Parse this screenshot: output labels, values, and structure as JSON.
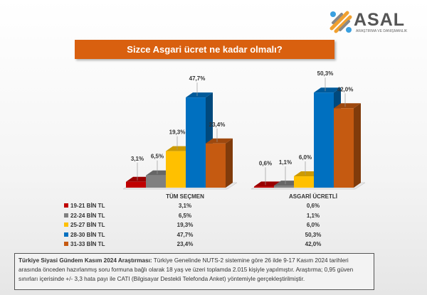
{
  "logo": {
    "name": "ASAL",
    "subtitle": "ARAŞTIRMA VE DANIŞMANLIK"
  },
  "title": "Sizce Asgari ücret ne kadar olmalı?",
  "chart_data": {
    "type": "bar",
    "title": "Sizce Asgari ücret ne kadar olmalı?",
    "categories": [
      "TÜM SEÇMEN",
      "ASGARİ ÜCRETLİ"
    ],
    "series": [
      {
        "name": "19-21 BİN TL",
        "color": "#c00000",
        "values": [
          3.1,
          0.6
        ],
        "labels": [
          "3,1%",
          "0,6%"
        ]
      },
      {
        "name": "22-24 BİN TL",
        "color": "#808080",
        "values": [
          6.5,
          1.1
        ],
        "labels": [
          "6,5%",
          "1,1%"
        ]
      },
      {
        "name": "25-27 BİN TL",
        "color": "#ffc000",
        "values": [
          19.3,
          6.0
        ],
        "labels": [
          "19,3%",
          "6,0%"
        ]
      },
      {
        "name": "28-30 BİN TL",
        "color": "#0070c0",
        "values": [
          47.7,
          50.3
        ],
        "labels": [
          "47,7%",
          "50,3%"
        ]
      },
      {
        "name": "31-33 BİN TL",
        "color": "#c55a11",
        "values": [
          23.4,
          42.0
        ],
        "labels": [
          "23,4%",
          "42,0%"
        ]
      }
    ],
    "style": "3d-clustered-column",
    "legend": "data-table-below"
  },
  "footer": {
    "bold": "Türkiye Siyasi Gündem Kasım 2024 Araştırması:",
    "text": " Türkiye Genelinde  NUTS-2 sistemine göre 26 ilde 9-17 Kasım 2024 tarihleri arasında önceden  hazırlanmış soru formuna bağlı olarak 18 yaş ve üzeri toplamda 2.015 kişiyle yapılmıştır. Araştırma; 0,95 güven sınırları içerisinde  +/- 3,3 hata payı ile CATI (Bilgisayar Destekli Telefonda  Anket) yöntemiyle gerçekleştirilmiştir."
  }
}
